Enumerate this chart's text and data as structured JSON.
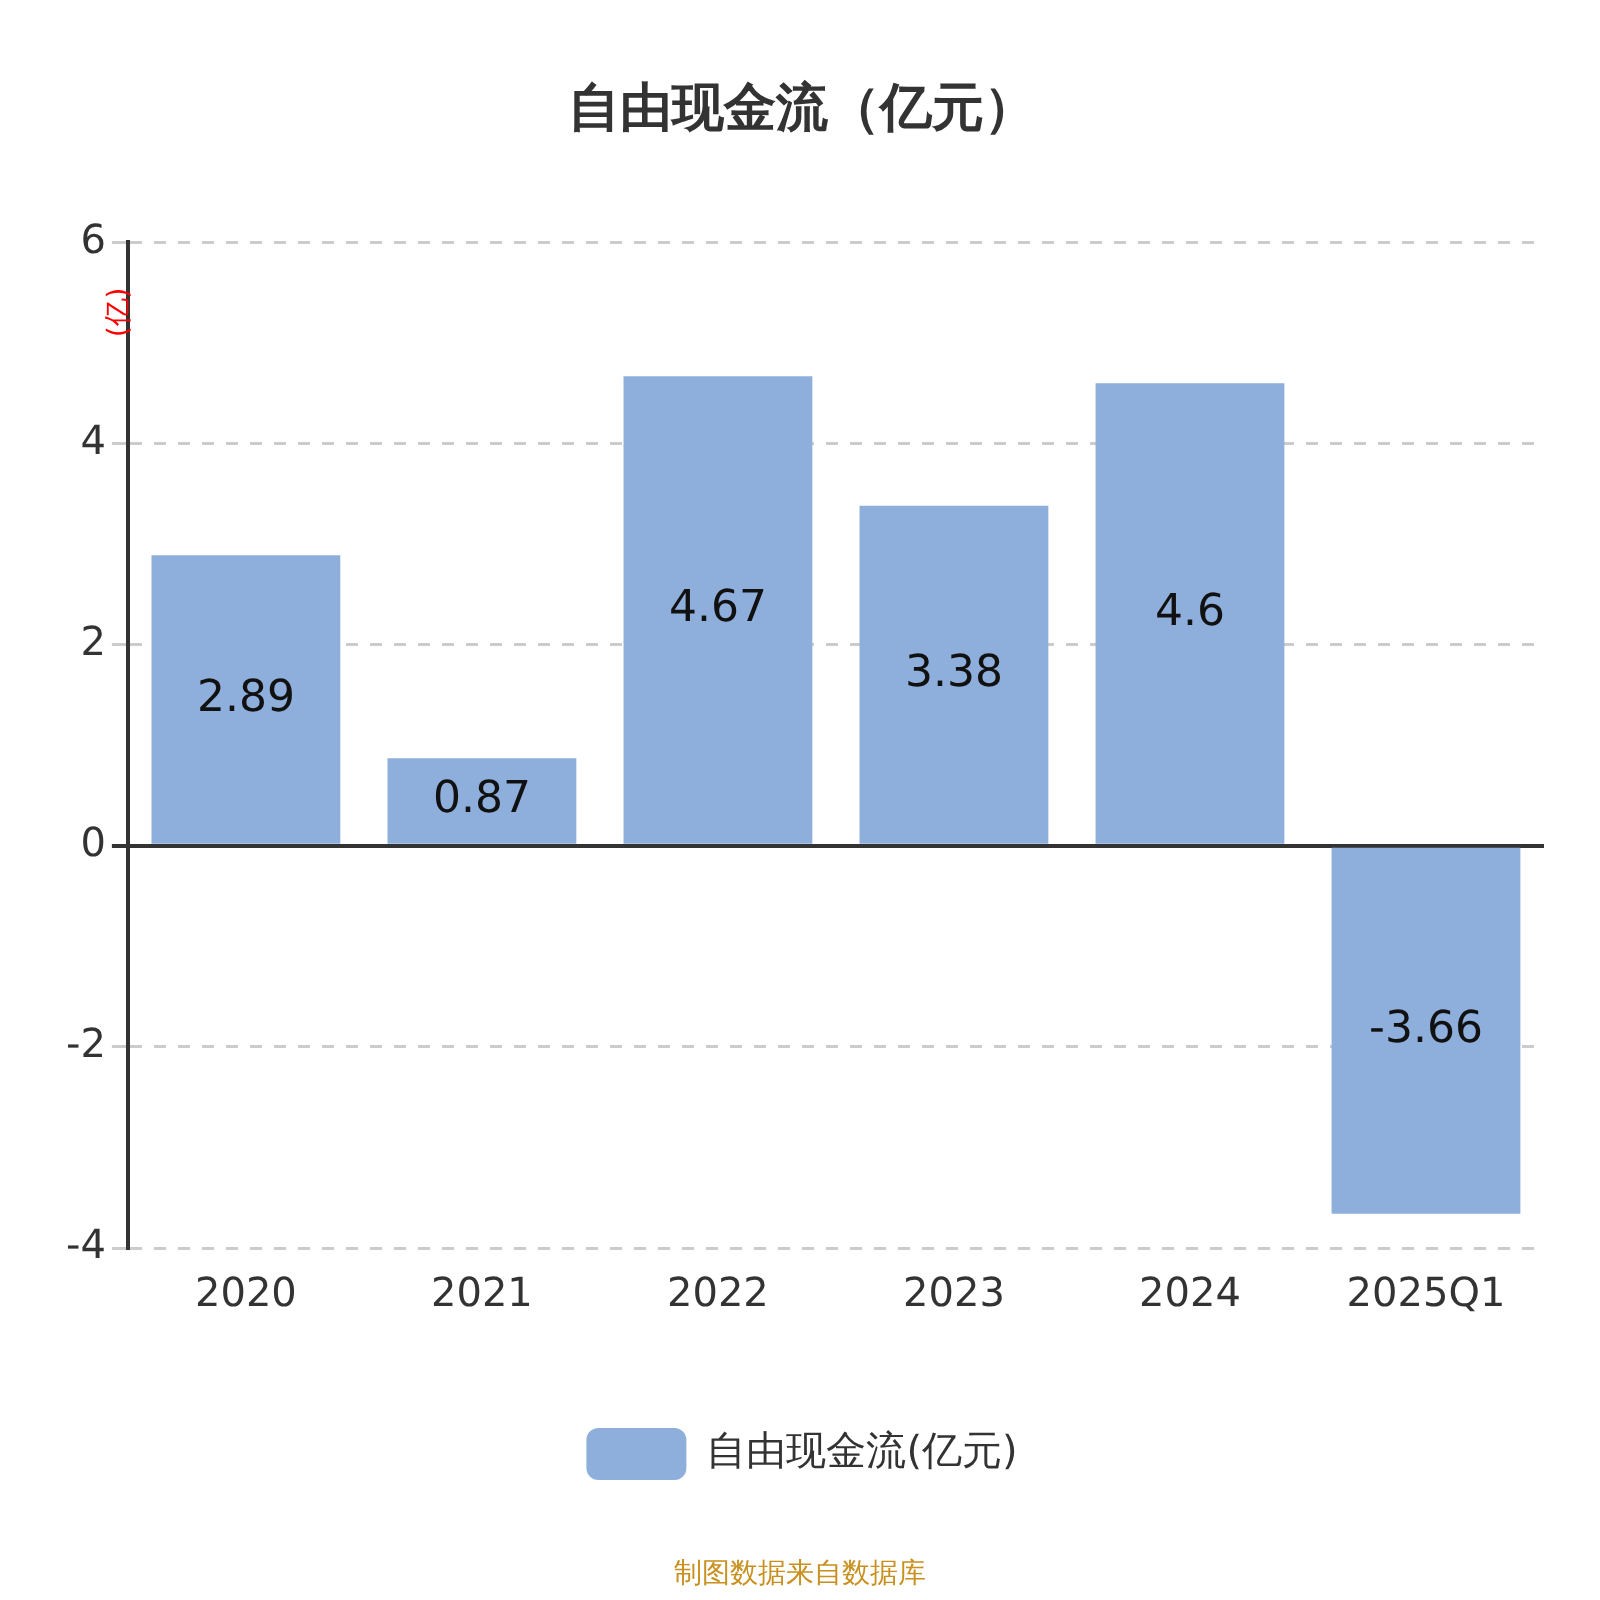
{
  "chart_data": {
    "type": "bar",
    "title": "自由现金流（亿元）",
    "ylabel": "(亿)",
    "categories": [
      "2020",
      "2021",
      "2022",
      "2023",
      "2024",
      "2025Q1"
    ],
    "series": [
      {
        "name": "自由现金流(亿元)",
        "color": "#8eaedb",
        "values": [
          2.89,
          0.87,
          4.67,
          3.38,
          4.6,
          -3.66
        ]
      }
    ],
    "ylim": [
      -4,
      6
    ],
    "yticks": [
      -4,
      -2,
      0,
      2,
      4,
      6
    ],
    "grid": "y",
    "legend": "bottom",
    "data_labels": true,
    "annotations": [
      "制图数据来自数据库"
    ]
  }
}
